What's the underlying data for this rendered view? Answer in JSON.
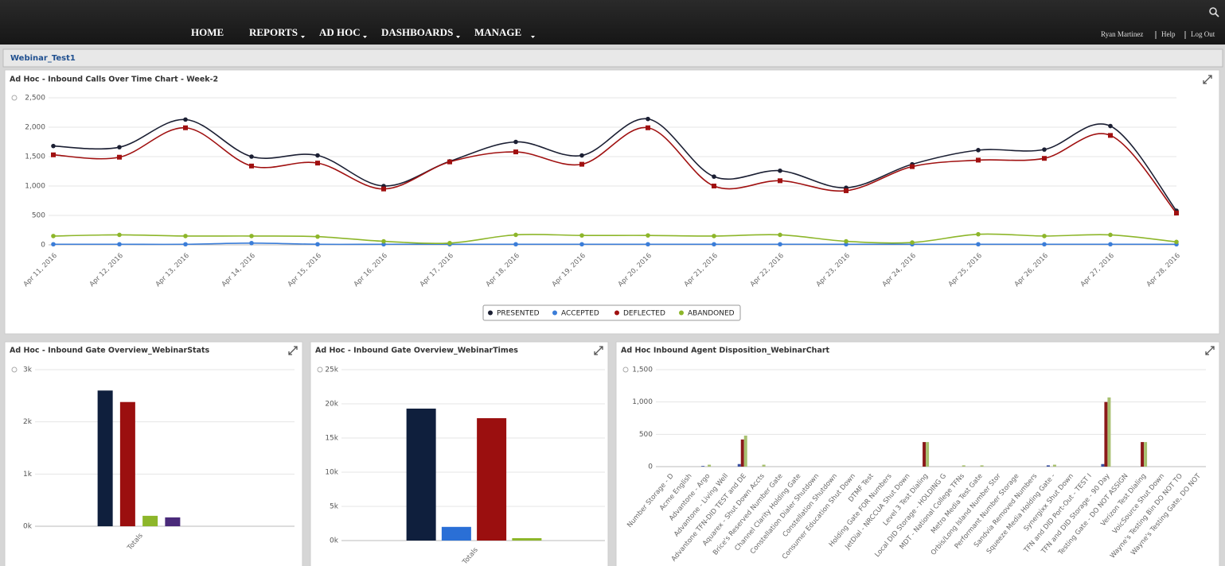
{
  "nav": {
    "items": [
      "HOME",
      "REPORTS",
      "AD HOC",
      "DASHBOARDS",
      "MANAGE"
    ],
    "user_links": [
      "Ryan Martinez",
      "Help",
      "Log Out"
    ]
  },
  "tab": "Webinar_Test1",
  "chart_data": [
    {
      "type": "line",
      "title": "Ad Hoc - Inbound Calls Over Time Chart - Week-2",
      "categories": [
        "Apr 11, 2016",
        "Apr 12, 2016",
        "Apr 13, 2016",
        "Apr 14, 2016",
        "Apr 15, 2016",
        "Apr 16, 2016",
        "Apr 17, 2016",
        "Apr 18, 2016",
        "Apr 19, 2016",
        "Apr 20, 2016",
        "Apr 21, 2016",
        "Apr 22, 2016",
        "Apr 23, 2016",
        "Apr 24, 2016",
        "Apr 25, 2016",
        "Apr 26, 2016",
        "Apr 27, 2016",
        "Apr 28, 2016"
      ],
      "series": [
        {
          "name": "PRESENTED",
          "color": "#1b1f33",
          "values": [
            1680,
            1660,
            2130,
            1500,
            1520,
            1000,
            1420,
            1750,
            1520,
            2140,
            1160,
            1260,
            970,
            1370,
            1610,
            1620,
            2020,
            580
          ]
        },
        {
          "name": "ACCEPTED",
          "color": "#3b7dd8",
          "values": [
            10,
            10,
            10,
            30,
            10,
            10,
            10,
            10,
            10,
            10,
            10,
            10,
            10,
            10,
            10,
            10,
            10,
            10
          ]
        },
        {
          "name": "DEFLECTED",
          "color": "#a01010",
          "values": [
            1530,
            1490,
            1990,
            1340,
            1390,
            950,
            1410,
            1580,
            1370,
            1990,
            1000,
            1090,
            920,
            1330,
            1440,
            1470,
            1860,
            540
          ]
        },
        {
          "name": "ABANDONED",
          "color": "#8db62a",
          "values": [
            150,
            170,
            150,
            150,
            140,
            60,
            30,
            170,
            160,
            160,
            150,
            170,
            60,
            40,
            180,
            150,
            170,
            50
          ]
        }
      ],
      "ylim": [
        0,
        2500
      ],
      "yticks": [
        0,
        500,
        {
          "value": 1000,
          "label": "1,000"
        },
        {
          "value": 1500,
          "label": "1,500"
        },
        {
          "value": 2000,
          "label": "2,000"
        },
        {
          "value": 2500,
          "label": "2,500"
        }
      ],
      "grid": true,
      "legend": "bottom"
    },
    {
      "type": "bar",
      "title": "Ad Hoc - Inbound Gate Overview_WebinarStats",
      "categories": [
        "Totals"
      ],
      "series": [
        {
          "color": "#0f1f3d",
          "values": [
            2600
          ]
        },
        {
          "color": "#9b0f0f",
          "values": [
            2380
          ]
        },
        {
          "color": "#8db62a",
          "values": [
            200
          ]
        },
        {
          "color": "#4a2a7a",
          "values": [
            170
          ]
        }
      ],
      "ylim": [
        0,
        3000
      ],
      "yticks": [
        {
          "value": 0,
          "label": "0k"
        },
        {
          "value": 1000,
          "label": "1k"
        },
        {
          "value": 2000,
          "label": "2k"
        },
        {
          "value": 3000,
          "label": "3k"
        }
      ],
      "grid": true
    },
    {
      "type": "bar",
      "title": "Ad Hoc - Inbound Gate Overview_WebinarTimes",
      "categories": [
        "Totals"
      ],
      "series": [
        {
          "color": "#0f1f3d",
          "values": [
            19300
          ]
        },
        {
          "color": "#2a6fd6",
          "values": [
            2000
          ]
        },
        {
          "color": "#9b0f0f",
          "values": [
            17900
          ]
        },
        {
          "color": "#8db62a",
          "values": [
            350
          ]
        }
      ],
      "ylim": [
        0,
        25000
      ],
      "yticks": [
        {
          "value": 0,
          "label": "0k"
        },
        {
          "value": 5000,
          "label": "5k"
        },
        {
          "value": 10000,
          "label": "10k"
        },
        {
          "value": 15000,
          "label": "15k"
        },
        {
          "value": 20000,
          "label": "20k"
        },
        {
          "value": 25000,
          "label": "25k"
        }
      ],
      "grid": true
    },
    {
      "type": "bar",
      "title": "Ad Hoc Inbound Agent Disposition_WebinarChart",
      "categories": [
        "Number Storage - D",
        "Acme English",
        "Advantone - Argo",
        "Advantone - Living Well",
        "Advantone TFN-DID TEST and DE",
        "Aquarex - Shut Down Accts",
        "Brice's Reserved Number Gate",
        "Channel Clarity Holding Gate",
        "Constellation Dialer Shutdown",
        "Constellation Shutdown",
        "Consumer Education Shut Down",
        "DTMF Test",
        "Holding Gate FOR Numbers",
        "JetDial - NRCCUA Shut Down",
        "Level 3 Test Dialing",
        "Local DID Storage - HOLDING G",
        "MDT - National College TFNs",
        "Metro Media Test Gate",
        "Orbis/Long Island Number Stor",
        "Performant Number Storage",
        "Sandvia Removed Numbers",
        "Squeeze Media Holding Gate -",
        "Synergixx Shut Down",
        "TFN and DID Port-Out - TEST I",
        "TFN and DID Storage - 90 Day",
        "Testing Gate - DO NOT ASSIGN",
        "Verizon Test Dialing",
        "VoicSource Shut Down",
        "Wayne's Testing Bin DO NOT TO",
        "Wayne's Testing Gate, DO NOT"
      ],
      "series": [
        {
          "color": "#3a4fa0",
          "values": [
            0,
            0,
            10,
            0,
            40,
            0,
            0,
            0,
            0,
            0,
            0,
            0,
            0,
            0,
            0,
            0,
            0,
            0,
            0,
            0,
            0,
            20,
            0,
            0,
            40,
            0,
            0,
            0,
            0,
            0
          ]
        },
        {
          "color": "#8b1a1a",
          "values": [
            0,
            0,
            0,
            0,
            420,
            0,
            0,
            0,
            0,
            0,
            0,
            0,
            0,
            0,
            380,
            0,
            0,
            0,
            0,
            0,
            0,
            0,
            0,
            0,
            1000,
            0,
            380,
            0,
            0,
            0
          ]
        },
        {
          "color": "#a8c070",
          "values": [
            0,
            0,
            30,
            0,
            480,
            30,
            0,
            0,
            0,
            0,
            0,
            0,
            0,
            0,
            380,
            0,
            20,
            20,
            0,
            0,
            0,
            30,
            0,
            0,
            1070,
            0,
            380,
            0,
            0,
            0
          ]
        }
      ],
      "ylim": [
        0,
        1500
      ],
      "yticks": [
        0,
        500,
        {
          "value": 1000,
          "label": "1,000"
        },
        {
          "value": 1500,
          "label": "1,500"
        }
      ],
      "grid": true
    }
  ]
}
